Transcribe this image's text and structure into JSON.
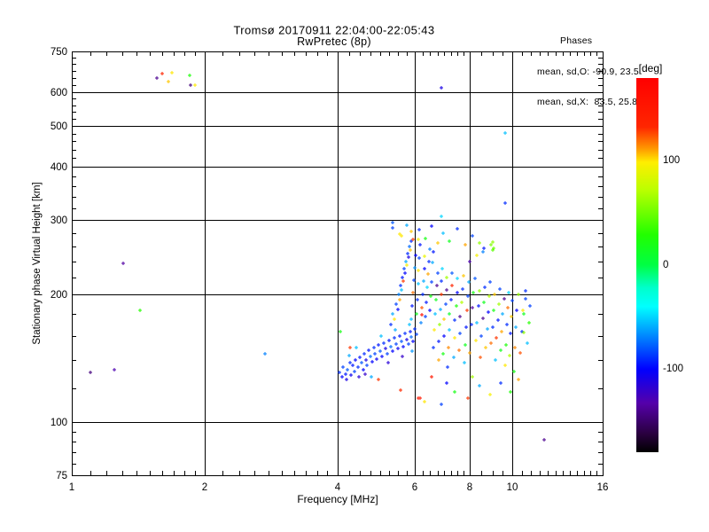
{
  "title": "Tromsø 20170911 22:04:00-22:05:43",
  "subtitle": "RwPretec (8p)",
  "stats": {
    "header": "Phases",
    "line_o": "mean, sd,O: -90.9, 23.5",
    "line_x": "mean, sd,X:  83.5, 25.8"
  },
  "chart_data": {
    "type": "scatter",
    "title": "Tromsø 20170911 22:04:00-22:05:43",
    "subtitle": "RwPretec (8p)",
    "xlabel": "Frequency [MHz]",
    "ylabel": "Stationary phase Virtual Height [km]",
    "xscale": "log",
    "yscale": "log",
    "xlim": [
      1,
      16
    ],
    "ylim": [
      75,
      750
    ],
    "x_major_ticks": [
      {
        "v": 1,
        "label": "1"
      },
      {
        "v": 2,
        "label": "2"
      },
      {
        "v": 4,
        "label": "4"
      },
      {
        "v": 6,
        "label": "6"
      },
      {
        "v": 8,
        "label": "8"
      },
      {
        "v": 10,
        "label": "10"
      },
      {
        "v": 16,
        "label": "16"
      }
    ],
    "x_minor_ticks": [
      1.1,
      1.2,
      1.3,
      1.4,
      1.5,
      1.6,
      1.7,
      1.8,
      1.9,
      2.2,
      2.4,
      2.6,
      2.8,
      3.0,
      3.2,
      3.4,
      3.6,
      3.8,
      4.25,
      4.5,
      4.75,
      5.0,
      5.25,
      5.5,
      5.75,
      6.25,
      6.5,
      6.75,
      7.0,
      7.25,
      7.5,
      7.75,
      8.5,
      9.0,
      9.5,
      10.5,
      11,
      11.5,
      12,
      12.5,
      13,
      13.5,
      14,
      14.5,
      15,
      15.5
    ],
    "y_major_ticks": [
      {
        "v": 75,
        "label": "75"
      },
      {
        "v": 100,
        "label": "100"
      },
      {
        "v": 200,
        "label": "200"
      },
      {
        "v": 300,
        "label": "300"
      },
      {
        "v": 400,
        "label": "400"
      },
      {
        "v": 500,
        "label": "500"
      },
      {
        "v": 600,
        "label": "600"
      },
      {
        "v": 750,
        "label": "750"
      }
    ],
    "y_minor_ticks": [
      80,
      85,
      90,
      95,
      120,
      140,
      160,
      180,
      220,
      240,
      260,
      280,
      320,
      340,
      360,
      380,
      420,
      440,
      460,
      480,
      520,
      540,
      560,
      580,
      625,
      650,
      675,
      700,
      725
    ],
    "x_gridlines": [
      2,
      4,
      6,
      8,
      10
    ],
    "y_gridlines": [
      100,
      200,
      300,
      400,
      500,
      600
    ],
    "grid": true,
    "colorbar": {
      "label": "[deg]",
      "range": [
        -180,
        180
      ],
      "ticks": [
        {
          "v": 100,
          "label": "100"
        },
        {
          "v": 0,
          "label": "0"
        },
        {
          "v": -100,
          "label": "-100"
        }
      ],
      "stops": [
        {
          "deg": 180,
          "color": "#ff0000"
        },
        {
          "deg": 133,
          "color": "#ff2600"
        },
        {
          "deg": 112,
          "color": "#ff9900"
        },
        {
          "deg": 99,
          "color": "#ffee00"
        },
        {
          "deg": 72,
          "color": "#baff00"
        },
        {
          "deg": 29,
          "color": "#22ff00"
        },
        {
          "deg": 0,
          "color": "#00ff44"
        },
        {
          "deg": -22,
          "color": "#00ffcc"
        },
        {
          "deg": -40,
          "color": "#00ffff"
        },
        {
          "deg": -72,
          "color": "#0077ff"
        },
        {
          "deg": -100,
          "color": "#0000ff"
        },
        {
          "deg": -133,
          "color": "#5500aa"
        },
        {
          "deg": -162,
          "color": "#2a0040"
        },
        {
          "deg": -180,
          "color": "#000000"
        }
      ]
    },
    "point_format": [
      "frequency_mhz",
      "virtual_height_km",
      "phase_deg"
    ],
    "points": [
      [
        4.05,
        131,
        -90
      ],
      [
        4.1,
        128,
        -100
      ],
      [
        4.12,
        135,
        -85
      ],
      [
        4.18,
        130,
        -95
      ],
      [
        4.2,
        126,
        -110
      ],
      [
        4.22,
        133,
        -80
      ],
      [
        4.28,
        138,
        -90
      ],
      [
        4.3,
        129,
        -105
      ],
      [
        4.33,
        136,
        -95
      ],
      [
        4.38,
        132,
        -85
      ],
      [
        4.4,
        140,
        -100
      ],
      [
        4.45,
        135,
        -90
      ],
      [
        4.47,
        128,
        -115
      ],
      [
        4.5,
        142,
        -95
      ],
      [
        4.55,
        138,
        -80
      ],
      [
        4.58,
        133,
        -100
      ],
      [
        4.6,
        145,
        -90
      ],
      [
        4.65,
        140,
        -110
      ],
      [
        4.68,
        136,
        -85
      ],
      [
        4.72,
        148,
        -95
      ],
      [
        4.75,
        143,
        -75
      ],
      [
        4.8,
        139,
        -100
      ],
      [
        4.85,
        150,
        -90
      ],
      [
        4.88,
        145,
        -85
      ],
      [
        4.92,
        141,
        -105
      ],
      [
        4.95,
        152,
        -95
      ],
      [
        5.0,
        147,
        -80
      ],
      [
        5.05,
        143,
        -100
      ],
      [
        5.1,
        154,
        -90
      ],
      [
        5.15,
        149,
        -110
      ],
      [
        5.2,
        145,
        -85
      ],
      [
        5.25,
        156,
        -95
      ],
      [
        5.3,
        151,
        -75
      ],
      [
        5.35,
        147,
        -100
      ],
      [
        5.4,
        158,
        -90
      ],
      [
        5.45,
        153,
        -85
      ],
      [
        5.5,
        149,
        -105
      ],
      [
        5.55,
        160,
        -95
      ],
      [
        5.6,
        155,
        -80
      ],
      [
        5.65,
        151,
        -100
      ],
      [
        5.7,
        162,
        -90
      ],
      [
        5.75,
        157,
        -110
      ],
      [
        5.8,
        153,
        -85
      ],
      [
        5.85,
        164,
        -95
      ],
      [
        5.9,
        159,
        -75
      ],
      [
        5.95,
        155,
        -100
      ],
      [
        6.0,
        166,
        -90
      ],
      [
        6.05,
        161,
        -85
      ],
      [
        4.25,
        144,
        -60
      ],
      [
        4.42,
        150,
        -55
      ],
      [
        4.62,
        130,
        -120
      ],
      [
        4.78,
        128,
        -60
      ],
      [
        5.02,
        160,
        -55
      ],
      [
        5.22,
        138,
        -115
      ],
      [
        5.42,
        165,
        -60
      ],
      [
        5.62,
        143,
        -120
      ],
      [
        5.82,
        170,
        -55
      ],
      [
        5.92,
        147,
        -65
      ],
      [
        4.28,
        150,
        130
      ],
      [
        4.06,
        164,
        20
      ],
      [
        4.96,
        126,
        130
      ],
      [
        5.56,
        119,
        132
      ],
      [
        5.3,
        170,
        -90
      ],
      [
        5.35,
        180,
        -60
      ],
      [
        5.4,
        175,
        100
      ],
      [
        5.45,
        190,
        -85
      ],
      [
        5.5,
        185,
        -100
      ],
      [
        5.52,
        200,
        -70
      ],
      [
        5.55,
        195,
        110
      ],
      [
        5.58,
        210,
        -90
      ],
      [
        5.6,
        205,
        -55
      ],
      [
        5.62,
        220,
        -95
      ],
      [
        5.65,
        215,
        130
      ],
      [
        5.68,
        230,
        -85
      ],
      [
        5.7,
        225,
        -100
      ],
      [
        5.72,
        240,
        -60
      ],
      [
        5.75,
        235,
        95
      ],
      [
        5.78,
        250,
        -90
      ],
      [
        5.8,
        245,
        -110
      ],
      [
        5.82,
        260,
        -75
      ],
      [
        5.85,
        255,
        105
      ],
      [
        5.88,
        268,
        -90
      ],
      [
        5.9,
        175,
        -55
      ],
      [
        5.92,
        188,
        -95
      ],
      [
        5.95,
        202,
        120
      ],
      [
        5.98,
        216,
        -85
      ],
      [
        6.0,
        232,
        -65
      ],
      [
        6.02,
        248,
        -100
      ],
      [
        6.05,
        180,
        15
      ],
      [
        6.08,
        195,
        -90
      ],
      [
        6.1,
        212,
        -55
      ],
      [
        6.12,
        228,
        100
      ],
      [
        6.15,
        244,
        -85
      ],
      [
        6.18,
        262,
        -95
      ],
      [
        6.2,
        172,
        -70
      ],
      [
        6.22,
        186,
        125
      ],
      [
        6.25,
        200,
        -90
      ],
      [
        6.28,
        215,
        -60
      ],
      [
        6.3,
        230,
        -100
      ],
      [
        6.32,
        246,
        90
      ],
      [
        6.35,
        178,
        -85
      ],
      [
        6.38,
        192,
        -95
      ],
      [
        6.4,
        208,
        -50
      ],
      [
        6.42,
        224,
        110
      ],
      [
        6.45,
        240,
        -90
      ],
      [
        6.48,
        256,
        -70
      ],
      [
        6.5,
        184,
        -100
      ],
      [
        6.52,
        198,
        20
      ],
      [
        6.55,
        214,
        -85
      ],
      [
        6.58,
        238,
        -60
      ],
      [
        6.6,
        252,
        -95
      ],
      [
        5.6,
        275,
        100
      ],
      [
        5.9,
        282,
        105
      ],
      [
        6.1,
        270,
        95
      ],
      [
        5.33,
        296,
        -80
      ],
      [
        6.22,
        179,
        160
      ],
      [
        6.62,
        150,
        -90
      ],
      [
        6.65,
        165,
        100
      ],
      [
        6.68,
        180,
        -55
      ],
      [
        6.7,
        195,
        15
      ],
      [
        6.72,
        210,
        -140
      ],
      [
        6.75,
        225,
        -85
      ],
      [
        6.78,
        140,
        110
      ],
      [
        6.8,
        155,
        -95
      ],
      [
        6.82,
        170,
        60
      ],
      [
        6.85,
        185,
        -60
      ],
      [
        6.88,
        200,
        130
      ],
      [
        6.9,
        215,
        -90
      ],
      [
        6.92,
        230,
        -50
      ],
      [
        6.95,
        145,
        20
      ],
      [
        6.98,
        160,
        -100
      ],
      [
        7.0,
        175,
        105
      ],
      [
        7.05,
        190,
        -85
      ],
      [
        7.08,
        205,
        -140
      ],
      [
        7.1,
        220,
        65
      ],
      [
        7.12,
        135,
        -90
      ],
      [
        7.15,
        150,
        115
      ],
      [
        7.18,
        165,
        -55
      ],
      [
        7.2,
        180,
        10
      ],
      [
        7.25,
        195,
        -95
      ],
      [
        7.28,
        210,
        135
      ],
      [
        7.3,
        225,
        -80
      ],
      [
        7.35,
        142,
        -60
      ],
      [
        7.38,
        158,
        100
      ],
      [
        7.4,
        174,
        -90
      ],
      [
        7.45,
        188,
        25
      ],
      [
        7.48,
        202,
        -100
      ],
      [
        7.5,
        218,
        -50
      ],
      [
        7.55,
        148,
        120
      ],
      [
        7.58,
        162,
        -85
      ],
      [
        7.6,
        178,
        -140
      ],
      [
        7.65,
        192,
        70
      ],
      [
        7.7,
        206,
        -90
      ],
      [
        7.75,
        222,
        105
      ],
      [
        7.78,
        138,
        -55
      ],
      [
        7.8,
        152,
        15
      ],
      [
        7.85,
        168,
        -95
      ],
      [
        7.88,
        184,
        130
      ],
      [
        7.9,
        198,
        -85
      ],
      [
        7.95,
        214,
        -60
      ],
      [
        8.0,
        146,
        110
      ],
      [
        8.05,
        170,
        -90
      ],
      [
        8.1,
        186,
        -135
      ],
      [
        8.15,
        202,
        20
      ],
      [
        8.2,
        218,
        -80
      ],
      [
        8.25,
        156,
        100
      ],
      [
        8.3,
        172,
        -55
      ],
      [
        8.35,
        188,
        -95
      ],
      [
        8.4,
        204,
        60
      ],
      [
        8.45,
        142,
        125
      ],
      [
        8.5,
        160,
        -85
      ],
      [
        8.55,
        176,
        -140
      ],
      [
        8.6,
        192,
        15
      ],
      [
        8.65,
        208,
        -90
      ],
      [
        8.7,
        150,
        105
      ],
      [
        8.75,
        166,
        -60
      ],
      [
        8.8,
        182,
        -100
      ],
      [
        8.85,
        198,
        70
      ],
      [
        8.9,
        214,
        -85
      ],
      [
        8.95,
        154,
        120
      ],
      [
        9.0,
        168,
        -90
      ],
      [
        9.05,
        184,
        20
      ],
      [
        9.1,
        200,
        105
      ],
      [
        9.15,
        140,
        -55
      ],
      [
        9.2,
        158,
        130
      ],
      [
        9.25,
        174,
        -95
      ],
      [
        9.3,
        190,
        65
      ],
      [
        9.35,
        206,
        -85
      ],
      [
        9.4,
        148,
        15
      ],
      [
        9.45,
        164,
        110
      ],
      [
        9.5,
        180,
        -60
      ],
      [
        9.55,
        196,
        -140
      ],
      [
        9.6,
        136,
        100
      ],
      [
        9.65,
        152,
        25
      ],
      [
        9.7,
        170,
        -90
      ],
      [
        9.75,
        186,
        120
      ],
      [
        9.8,
        202,
        -50
      ],
      [
        9.85,
        144,
        70
      ],
      [
        9.9,
        162,
        -95
      ],
      [
        9.95,
        178,
        105
      ],
      [
        10.0,
        194,
        -85
      ],
      [
        10.05,
        132,
        20
      ],
      [
        10.1,
        150,
        115
      ],
      [
        10.15,
        168,
        -60
      ],
      [
        10.2,
        184,
        -100
      ],
      [
        10.3,
        200,
        60
      ],
      [
        10.4,
        146,
        125
      ],
      [
        10.5,
        164,
        -90
      ],
      [
        10.6,
        180,
        15
      ],
      [
        10.7,
        196,
        100
      ],
      [
        10.8,
        154,
        -55
      ],
      [
        10.9,
        172,
        30
      ],
      [
        10.95,
        188,
        -85
      ],
      [
        10.7,
        204,
        -90
      ],
      [
        10.72,
        196,
        -85
      ],
      [
        10.55,
        184,
        100
      ],
      [
        10.6,
        163,
        60
      ],
      [
        5.35,
        288,
        -85
      ],
      [
        5.55,
        278,
        100
      ],
      [
        5.75,
        292,
        -60
      ],
      [
        5.95,
        270,
        130
      ],
      [
        6.15,
        285,
        -90
      ],
      [
        6.35,
        272,
        20
      ],
      [
        6.55,
        290,
        -100
      ],
      [
        6.75,
        265,
        105
      ],
      [
        6.95,
        280,
        -55
      ],
      [
        7.2,
        268,
        15
      ],
      [
        7.5,
        286,
        -90
      ],
      [
        7.8,
        262,
        110
      ],
      [
        8.1,
        275,
        -85
      ],
      [
        8.4,
        265,
        60
      ],
      [
        8.6,
        258,
        -95
      ],
      [
        6.9,
        306,
        -50
      ],
      [
        8.0,
        240,
        -130
      ],
      [
        8.3,
        248,
        95
      ],
      [
        8.55,
        252,
        -70
      ],
      [
        8.95,
        262,
        55
      ],
      [
        9.0,
        266,
        60
      ],
      [
        9.05,
        258,
        50
      ],
      [
        9.0,
        255,
        45
      ],
      [
        6.3,
        112,
        100
      ],
      [
        6.9,
        110,
        -85
      ],
      [
        7.4,
        118,
        20
      ],
      [
        7.9,
        114,
        130
      ],
      [
        8.4,
        122,
        -60
      ],
      [
        8.9,
        116,
        95
      ],
      [
        9.4,
        124,
        -90
      ],
      [
        9.9,
        118,
        25
      ],
      [
        10.3,
        126,
        110
      ],
      [
        7.1,
        124,
        -100
      ],
      [
        8.1,
        128,
        65
      ],
      [
        6.1,
        114,
        155
      ],
      [
        6.17,
        114,
        150
      ],
      [
        6.55,
        128,
        150
      ],
      [
        1.6,
        665,
        135
      ],
      [
        1.69,
        668,
        100
      ],
      [
        1.56,
        650,
        -140
      ],
      [
        1.85,
        659,
        25
      ],
      [
        1.66,
        638,
        105
      ],
      [
        1.86,
        626,
        -145
      ],
      [
        1.9,
        626,
        100
      ],
      [
        6.88,
        615,
        -110
      ],
      [
        9.62,
        481,
        -55
      ],
      [
        9.63,
        329,
        -90
      ],
      [
        1.31,
        237,
        -135
      ],
      [
        1.43,
        184,
        30
      ],
      [
        2.74,
        145,
        -70
      ],
      [
        1.25,
        133,
        -130
      ],
      [
        1.1,
        131,
        -145
      ],
      [
        11.8,
        91,
        -140
      ]
    ]
  }
}
